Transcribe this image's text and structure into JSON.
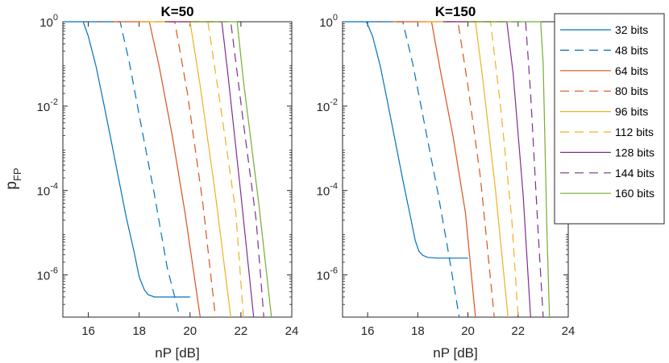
{
  "figure_ylabel": "p",
  "figure_ylabel_sub": "FP",
  "chart_data": [
    {
      "type": "line",
      "title": "K=50",
      "xlabel": "nP [dB]",
      "ylabel": "pFP",
      "xlim": [
        15,
        24
      ],
      "yscale": "log",
      "ylim": [
        1e-07,
        1
      ],
      "xticks": [
        "16",
        "18",
        "20",
        "22",
        "24"
      ],
      "yticks": [
        {
          "base": "10",
          "exp": "0",
          "value": 1
        },
        {
          "base": "10",
          "exp": "-2",
          "value": 0.01
        },
        {
          "base": "10",
          "exp": "-4",
          "value": 0.0001
        },
        {
          "base": "10",
          "exp": "-6",
          "value": 1e-06
        }
      ],
      "series": [
        {
          "name": "32 bits",
          "color": "#0072BD",
          "dash": "solid",
          "x": [
            15,
            15.8,
            16.0,
            16.3,
            16.6,
            16.9,
            17.2,
            17.5,
            17.8,
            18.0,
            18.2,
            18.35,
            18.6,
            19.0,
            19.4,
            20.0
          ],
          "y": [
            1,
            1,
            0.45,
            0.09,
            0.012,
            0.0015,
            0.00018,
            2.2e-05,
            3.5e-06,
            9e-07,
            4.5e-07,
            3.4e-07,
            3e-07,
            3e-07,
            3e-07,
            3e-07
          ]
        },
        {
          "name": "48 bits",
          "color": "#0072BD",
          "dash": "dashed",
          "x": [
            16.0,
            17.25,
            17.6,
            18.1,
            18.6,
            19.1,
            19.6
          ],
          "y": [
            1,
            1,
            0.12,
            0.003,
            8e-05,
            1.5e-06,
            1e-07
          ]
        },
        {
          "name": "64 bits",
          "color": "#D95319",
          "dash": "solid",
          "x": [
            17.0,
            18.4,
            18.8,
            19.3,
            19.8,
            20.4
          ],
          "y": [
            1,
            1,
            0.08,
            0.002,
            3e-05,
            1e-07
          ]
        },
        {
          "name": "80 bits",
          "color": "#D95319",
          "dash": "dashed",
          "x": [
            18.0,
            19.4,
            19.9,
            20.5,
            21.0
          ],
          "y": [
            1,
            1,
            0.02,
            5e-05,
            1e-07
          ]
        },
        {
          "name": "96 bits",
          "color": "#EDB120",
          "dash": "solid",
          "x": [
            18.0,
            20.0,
            20.4,
            21.0,
            21.6
          ],
          "y": [
            1,
            1,
            0.03,
            8e-05,
            1e-07
          ]
        },
        {
          "name": "112 bits",
          "color": "#EDB120",
          "dash": "dashed",
          "x": [
            19.0,
            20.7,
            21.2,
            21.8,
            22.1
          ],
          "y": [
            1,
            1,
            0.01,
            3e-05,
            1e-07
          ]
        },
        {
          "name": "128 bits",
          "color": "#7E2F8E",
          "dash": "solid",
          "x": [
            19.0,
            21.25,
            21.5,
            22.0,
            22.5
          ],
          "y": [
            1,
            1,
            0.05,
            8e-05,
            1e-07
          ]
        },
        {
          "name": "144 bits",
          "color": "#7E2F8E",
          "dash": "dashed",
          "x": [
            20.0,
            21.6,
            22.1,
            22.6,
            22.9
          ],
          "y": [
            1,
            1,
            0.004,
            2e-05,
            1e-07
          ]
        },
        {
          "name": "160 bits",
          "color": "#77AC30",
          "dash": "solid",
          "x": [
            20.0,
            21.85,
            22.1,
            22.7,
            23.2
          ],
          "y": [
            1,
            1,
            0.04,
            5e-05,
            1e-07
          ]
        }
      ]
    },
    {
      "type": "line",
      "title": "K=150",
      "xlabel": "nP [dB]",
      "ylabel": "",
      "xlim": [
        15,
        24
      ],
      "yscale": "log",
      "ylim": [
        1e-07,
        1
      ],
      "xticks": [
        "16",
        "18",
        "20",
        "22",
        "24"
      ],
      "yticks": [
        {
          "base": "10",
          "exp": "0",
          "value": 1
        },
        {
          "base": "10",
          "exp": "-2",
          "value": 0.01
        },
        {
          "base": "10",
          "exp": "-4",
          "value": 0.0001
        },
        {
          "base": "10",
          "exp": "-6",
          "value": 1e-06
        }
      ],
      "series": [
        {
          "name": "32 bits",
          "color": "#0072BD",
          "dash": "solid",
          "x": [
            15,
            15.95,
            16.2,
            16.5,
            16.8,
            17.1,
            17.4,
            17.7,
            17.9,
            18.05,
            18.2,
            18.4,
            18.8,
            19.4,
            20.0
          ],
          "y": [
            1,
            1,
            0.45,
            0.09,
            0.012,
            0.0015,
            0.00018,
            2.5e-05,
            6.5e-06,
            3.6e-06,
            2.9e-06,
            2.6e-06,
            2.5e-06,
            2.5e-06,
            2.5e-06
          ]
        },
        {
          "name": "48 bits",
          "color": "#0072BD",
          "dash": "dashed",
          "x": [
            16.0,
            17.4,
            17.8,
            18.3,
            18.8,
            19.2,
            19.65
          ],
          "y": [
            1,
            1,
            0.1,
            0.003,
            9e-05,
            4e-06,
            1e-07
          ]
        },
        {
          "name": "64 bits",
          "color": "#D95319",
          "dash": "solid",
          "x": [
            17.0,
            18.55,
            18.9,
            19.4,
            19.9,
            20.3
          ],
          "y": [
            1,
            1,
            0.07,
            0.002,
            3e-05,
            1e-07
          ]
        },
        {
          "name": "80 bits",
          "color": "#D95319",
          "dash": "dashed",
          "x": [
            18.0,
            19.6,
            20.0,
            20.5,
            21.05
          ],
          "y": [
            1,
            1,
            0.03,
            0.0002,
            1e-07
          ]
        },
        {
          "name": "96 bits",
          "color": "#EDB120",
          "dash": "solid",
          "x": [
            18.0,
            20.3,
            20.6,
            21.1,
            21.6
          ],
          "y": [
            1,
            1,
            0.04,
            0.0001,
            1e-07
          ]
        },
        {
          "name": "112 bits",
          "color": "#EDB120",
          "dash": "dashed",
          "x": [
            19.0,
            20.9,
            21.3,
            21.75,
            22.0
          ],
          "y": [
            1,
            1,
            0.01,
            2e-05,
            1e-07
          ]
        },
        {
          "name": "128 bits",
          "color": "#7E2F8E",
          "dash": "solid",
          "x": [
            19.0,
            21.55,
            21.8,
            22.2,
            22.5
          ],
          "y": [
            1,
            1,
            0.06,
            8e-05,
            1e-07
          ]
        },
        {
          "name": "144 bits",
          "color": "#7E2F8E",
          "dash": "dashed",
          "x": [
            20.0,
            22.3,
            22.5,
            22.8,
            23.0
          ],
          "y": [
            1,
            1,
            0.02,
            1e-05,
            1e-07
          ]
        },
        {
          "name": "160 bits",
          "color": "#77AC30",
          "dash": "solid",
          "x": [
            20.0,
            22.9,
            23.0,
            23.15,
            23.25
          ],
          "y": [
            1,
            1,
            0.1,
            1e-05,
            1e-07
          ]
        }
      ]
    }
  ],
  "legend": {
    "entries": [
      {
        "label": "32 bits",
        "color": "#0072BD",
        "dash": "solid"
      },
      {
        "label": "48 bits",
        "color": "#0072BD",
        "dash": "dashed"
      },
      {
        "label": "64 bits",
        "color": "#D95319",
        "dash": "solid"
      },
      {
        "label": "80 bits",
        "color": "#D95319",
        "dash": "dashed"
      },
      {
        "label": "96 bits",
        "color": "#EDB120",
        "dash": "solid"
      },
      {
        "label": "112 bits",
        "color": "#EDB120",
        "dash": "dashed"
      },
      {
        "label": "128 bits",
        "color": "#7E2F8E",
        "dash": "solid"
      },
      {
        "label": "144 bits",
        "color": "#7E2F8E",
        "dash": "dashed"
      },
      {
        "label": "160 bits",
        "color": "#77AC30",
        "dash": "solid"
      }
    ]
  }
}
